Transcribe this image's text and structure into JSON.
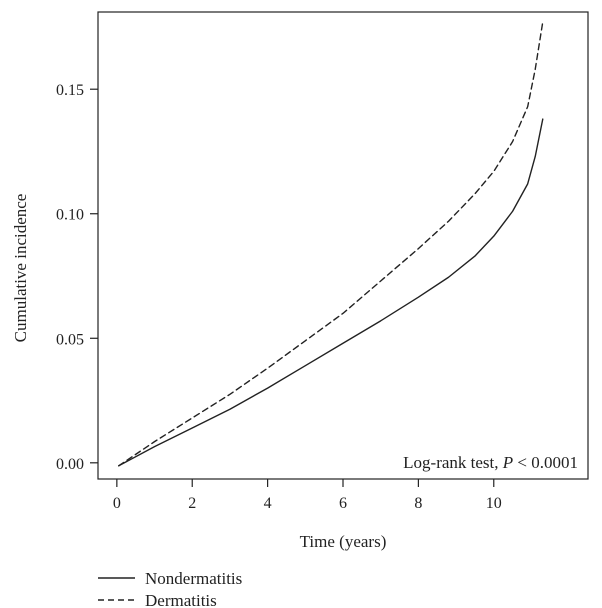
{
  "chart_data": {
    "type": "line",
    "xlabel": "Time (years)",
    "ylabel": "Cumulative incidence",
    "xlim": [
      -0.5,
      12.5
    ],
    "ylim": [
      -0.0065,
      0.181
    ],
    "x_ticks": [
      0,
      2,
      4,
      6,
      8,
      10
    ],
    "y_ticks": [
      0.0,
      0.05,
      0.1,
      0.15
    ],
    "x_tick_labels": [
      "0",
      "2",
      "4",
      "6",
      "8",
      "10"
    ],
    "y_tick_labels": [
      "0.00",
      "0.05",
      "0.10",
      "0.15"
    ],
    "annotation": {
      "text_prefix": "Log-rank test, ",
      "p_symbol": "P",
      "text_suffix": " < 0.0001"
    },
    "legend_placement": "bottom-left-outside",
    "series": [
      {
        "name": "Nondermatitis",
        "line_style": "solid",
        "x": [
          0.05,
          1.0,
          2.0,
          3.0,
          4.0,
          5.0,
          6.0,
          7.0,
          8.0,
          8.8,
          9.5,
          10.0,
          10.5,
          10.9,
          11.1,
          11.3
        ],
        "y": [
          -0.0012,
          0.0065,
          0.014,
          0.0215,
          0.03,
          0.039,
          0.048,
          0.057,
          0.0665,
          0.0745,
          0.083,
          0.091,
          0.101,
          0.112,
          0.123,
          0.138
        ]
      },
      {
        "name": "Dermatitis",
        "line_style": "dashed",
        "x": [
          0.05,
          1.0,
          2.0,
          3.0,
          4.0,
          5.0,
          6.0,
          7.0,
          8.0,
          8.8,
          9.5,
          10.0,
          10.5,
          10.9,
          11.1,
          11.3
        ],
        "y": [
          -0.0012,
          0.0085,
          0.018,
          0.0275,
          0.038,
          0.049,
          0.06,
          0.073,
          0.086,
          0.097,
          0.108,
          0.117,
          0.129,
          0.143,
          0.158,
          0.177
        ]
      }
    ]
  }
}
